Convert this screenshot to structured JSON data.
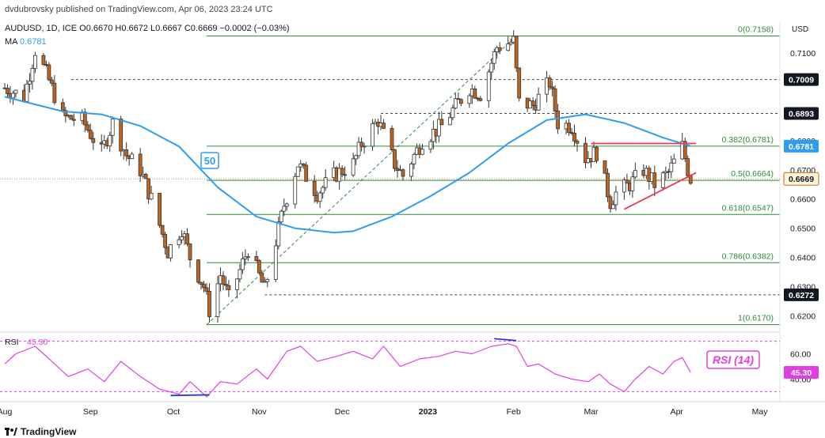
{
  "header": {
    "publisher": "dvdubrovsky published on TradingView.com, Apr 06, 2023 23:24 UTC",
    "symbol": "AUDUSD, 1D, ICE",
    "ohlc": "O0.6670  H0.6672  L0.6667  C0.6669  −0.0002 (−0.03%)",
    "ma_label": "MA",
    "ma_value": "0.6781"
  },
  "footer": {
    "logo_text": "TradingView"
  },
  "colors": {
    "bull": "#ffffff",
    "bear": "#c0631c",
    "wick": "#333333",
    "ma": "#2e9cf0",
    "fib": "#2f8a34",
    "rsi": "#e040e0",
    "trend": "#ea3a55",
    "diverge": "#1e3fd0",
    "price_dark": "#131722",
    "ma_badge": "#2e9cf0"
  },
  "chart_data": [
    {
      "type": "candlestick",
      "symbol": "AUDUSD",
      "timeframe": "1D",
      "currency_label": "USD",
      "ylim": [
        0.615,
        0.72
      ],
      "y_ticks": [
        "0.7100",
        "0.7000",
        "0.6900",
        "0.6800",
        "0.6700",
        "0.6600",
        "0.6500",
        "0.6400",
        "0.6300",
        "0.6200"
      ],
      "x_labels": [
        "Aug",
        "Sep",
        "Oct",
        "Nov",
        "Dec",
        "2023",
        "Feb",
        "Mar",
        "Apr",
        "May"
      ],
      "x_label_dates": [
        "2022-08-01",
        "2022-09-01",
        "2022-10-01",
        "2022-11-01",
        "2022-12-01",
        "2023-01-01",
        "2023-02-01",
        "2023-03-01",
        "2023-04-01",
        "2023-05-01"
      ],
      "xlim": [
        "2022-08-01",
        "2023-05-10"
      ],
      "price_path": [
        [
          "2022-08-01",
          0.698
        ],
        [
          "2022-08-08",
          0.695
        ],
        [
          "2022-08-12",
          0.711
        ],
        [
          "2022-08-16",
          0.703
        ],
        [
          "2022-08-22",
          0.688
        ],
        [
          "2022-08-29",
          0.687
        ],
        [
          "2022-09-05",
          0.676
        ],
        [
          "2022-09-09",
          0.686
        ],
        [
          "2022-09-14",
          0.675
        ],
        [
          "2022-09-19",
          0.67
        ],
        [
          "2022-09-23",
          0.66
        ],
        [
          "2022-09-29",
          0.642
        ],
        [
          "2022-10-04",
          0.65
        ],
        [
          "2022-10-07",
          0.64
        ],
        [
          "2022-10-12",
          0.63
        ],
        [
          "2022-10-14",
          0.622
        ],
        [
          "2022-10-18",
          0.634
        ],
        [
          "2022-10-21",
          0.626
        ],
        [
          "2022-10-24",
          0.633
        ],
        [
          "2022-10-28",
          0.643
        ],
        [
          "2022-11-03",
          0.629
        ],
        [
          "2022-11-10",
          0.658
        ],
        [
          "2022-11-15",
          0.672
        ],
        [
          "2022-11-22",
          0.662
        ],
        [
          "2022-11-28",
          0.668
        ],
        [
          "2022-12-05",
          0.672
        ],
        [
          "2022-12-08",
          0.679
        ],
        [
          "2022-12-14",
          0.687
        ],
        [
          "2022-12-20",
          0.672
        ],
        [
          "2022-12-23",
          0.668
        ],
        [
          "2022-12-30",
          0.68
        ],
        [
          "2023-01-06",
          0.685
        ],
        [
          "2023-01-12",
          0.693
        ],
        [
          "2023-01-16",
          0.698
        ],
        [
          "2023-01-20",
          0.696
        ],
        [
          "2023-01-26",
          0.712
        ],
        [
          "2023-02-01",
          0.714
        ],
        [
          "2023-02-03",
          0.693
        ],
        [
          "2023-02-08",
          0.692
        ],
        [
          "2023-02-14",
          0.7
        ],
        [
          "2023-02-17",
          0.686
        ],
        [
          "2023-02-22",
          0.685
        ],
        [
          "2023-02-27",
          0.674
        ],
        [
          "2023-03-03",
          0.676
        ],
        [
          "2023-03-08",
          0.659
        ],
        [
          "2023-03-10",
          0.662
        ],
        [
          "2023-03-15",
          0.665
        ],
        [
          "2023-03-20",
          0.67
        ],
        [
          "2023-03-24",
          0.665
        ],
        [
          "2023-03-29",
          0.669
        ],
        [
          "2023-04-03",
          0.678
        ],
        [
          "2023-04-05",
          0.67
        ],
        [
          "2023-04-06",
          0.6669
        ]
      ],
      "moving_average": {
        "label": "50",
        "points": [
          [
            "2022-08-01",
            0.695
          ],
          [
            "2022-08-22",
            0.69
          ],
          [
            "2022-09-05",
            0.689
          ],
          [
            "2022-09-19",
            0.685
          ],
          [
            "2022-10-03",
            0.678
          ],
          [
            "2022-10-17",
            0.664
          ],
          [
            "2022-10-31",
            0.654
          ],
          [
            "2022-11-14",
            0.65
          ],
          [
            "2022-11-28",
            0.6485
          ],
          [
            "2022-12-05",
            0.649
          ],
          [
            "2022-12-19",
            0.654
          ],
          [
            "2023-01-02",
            0.661
          ],
          [
            "2023-01-16",
            0.669
          ],
          [
            "2023-01-30",
            0.679
          ],
          [
            "2023-02-13",
            0.687
          ],
          [
            "2023-02-27",
            0.689
          ],
          [
            "2023-03-13",
            0.686
          ],
          [
            "2023-03-27",
            0.681
          ],
          [
            "2023-04-06",
            0.6781
          ]
        ]
      },
      "fibonacci": [
        {
          "label": "0(0.7158)",
          "value": 0.7158
        },
        {
          "label": "0.382(0.6781)",
          "value": 0.6781
        },
        {
          "label": "0.5(0.6664)",
          "value": 0.6664
        },
        {
          "label": "0.618(0.6547)",
          "value": 0.6547
        },
        {
          "label": "0.786(0.6382)",
          "value": 0.6382
        },
        {
          "label": "1(0.6170)",
          "value": 0.617
        }
      ],
      "fib_start": "2022-10-13",
      "dashed_levels": [
        {
          "value": 0.7009,
          "from": "2022-08-25"
        },
        {
          "value": 0.6893,
          "from": "2022-12-15"
        },
        {
          "value": 0.6272,
          "from": "2022-11-03"
        }
      ],
      "trendlines": [
        {
          "from": [
            "2023-03-01",
            0.679
          ],
          "to": [
            "2023-04-08",
            0.679
          ]
        },
        {
          "from": [
            "2023-03-13",
            0.6565
          ],
          "to": [
            "2023-04-08",
            0.669
          ]
        }
      ],
      "swing_line": {
        "from": [
          "2022-10-13",
          0.617
        ],
        "to": [
          "2023-02-02",
          0.7158
        ]
      },
      "price_badges": [
        {
          "label": "0.7009",
          "value": 0.7009,
          "style": "dark"
        },
        {
          "label": "0.6893",
          "value": 0.6893,
          "style": "dark"
        },
        {
          "label": "0.6781",
          "value": 0.6781,
          "style": "ma"
        },
        {
          "label": "0.6669",
          "value": 0.6669,
          "style": "current"
        },
        {
          "label": "0.6272",
          "value": 0.6272,
          "style": "dark"
        }
      ]
    },
    {
      "type": "line",
      "name": "RSI",
      "label": "RSI (14)",
      "value_label": "45.30",
      "ylim": [
        24,
        76
      ],
      "y_ticks": [
        "60.00",
        "40.00"
      ],
      "levels": [
        70,
        30
      ],
      "points": [
        [
          "2022-08-01",
          52
        ],
        [
          "2022-08-05",
          60
        ],
        [
          "2022-08-12",
          66
        ],
        [
          "2022-08-18",
          54
        ],
        [
          "2022-08-24",
          42
        ],
        [
          "2022-08-31",
          48
        ],
        [
          "2022-09-06",
          38
        ],
        [
          "2022-09-12",
          54
        ],
        [
          "2022-09-19",
          42
        ],
        [
          "2022-09-26",
          32
        ],
        [
          "2022-10-03",
          28
        ],
        [
          "2022-10-07",
          38
        ],
        [
          "2022-10-13",
          26
        ],
        [
          "2022-10-18",
          38
        ],
        [
          "2022-10-24",
          36
        ],
        [
          "2022-10-31",
          48
        ],
        [
          "2022-11-04",
          40
        ],
        [
          "2022-11-11",
          62
        ],
        [
          "2022-11-16",
          66
        ],
        [
          "2022-11-22",
          54
        ],
        [
          "2022-11-29",
          58
        ],
        [
          "2022-12-05",
          62
        ],
        [
          "2022-12-12",
          56
        ],
        [
          "2022-12-16",
          66
        ],
        [
          "2022-12-22",
          50
        ],
        [
          "2022-12-29",
          56
        ],
        [
          "2023-01-05",
          58
        ],
        [
          "2023-01-11",
          62
        ],
        [
          "2023-01-17",
          60
        ],
        [
          "2023-01-24",
          66
        ],
        [
          "2023-01-30",
          68
        ],
        [
          "2023-02-02",
          66
        ],
        [
          "2023-02-06",
          50
        ],
        [
          "2023-02-10",
          52
        ],
        [
          "2023-02-16",
          44
        ],
        [
          "2023-02-22",
          40
        ],
        [
          "2023-02-28",
          38
        ],
        [
          "2023-03-04",
          44
        ],
        [
          "2023-03-08",
          36
        ],
        [
          "2023-03-13",
          30
        ],
        [
          "2023-03-17",
          40
        ],
        [
          "2023-03-22",
          50
        ],
        [
          "2023-03-27",
          44
        ],
        [
          "2023-03-31",
          54
        ],
        [
          "2023-04-03",
          57
        ],
        [
          "2023-04-06",
          45.3
        ]
      ],
      "divergence_lines": [
        {
          "from": [
            "2023-01-25",
            72
          ],
          "to": [
            "2023-02-02",
            70.5
          ]
        },
        {
          "from": [
            "2022-09-30",
            27
          ],
          "to": [
            "2022-10-14",
            27.5
          ]
        }
      ]
    }
  ]
}
